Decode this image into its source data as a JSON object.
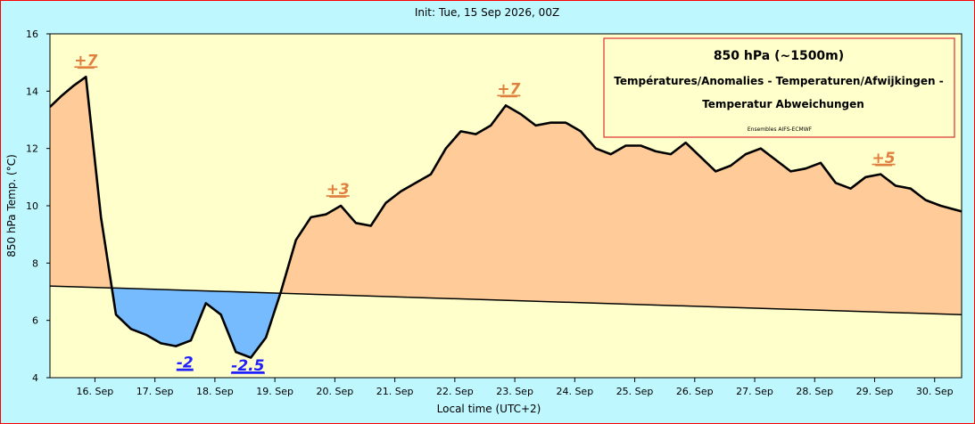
{
  "header": {
    "init_text": "Init: Tue, 15 Sep 2026, 00Z"
  },
  "legend_box": {
    "title": "850 hPa (~1500m)",
    "line1": "Températures/Anomalies - Temperaturen/Afwijkingen -",
    "line2": "Temperatur Abweichungen",
    "source": "Ensembles AIFS-ECMWF"
  },
  "colors": {
    "positive_fill": "#ffcc99",
    "negative_fill": "#77bbff",
    "plot_bg": "#ffffcc",
    "positive_label": "#e08040",
    "negative_label": "#2020ff",
    "legend_border": "#e03030"
  },
  "chart_data": {
    "type": "area",
    "ylabel": "850 hPa Temp. (°C)",
    "xlabel": "Local time (UTC+2)",
    "ylim": [
      4,
      16
    ],
    "yticks": [
      4,
      6,
      8,
      10,
      12,
      14,
      16
    ],
    "xlim": [
      15.25,
      30.45
    ],
    "x_tick_labels": [
      {
        "x": 16,
        "label": "16. Sep"
      },
      {
        "x": 17,
        "label": "17. Sep"
      },
      {
        "x": 18,
        "label": "18. Sep"
      },
      {
        "x": 19,
        "label": "19. Sep"
      },
      {
        "x": 20,
        "label": "20. Sep"
      },
      {
        "x": 21,
        "label": "21. Sep"
      },
      {
        "x": 22,
        "label": "22. Sep"
      },
      {
        "x": 23,
        "label": "23. Sep"
      },
      {
        "x": 24,
        "label": "24. Sep"
      },
      {
        "x": 25,
        "label": "25. Sep"
      },
      {
        "x": 26,
        "label": "26. Sep"
      },
      {
        "x": 27,
        "label": "27. Sep"
      },
      {
        "x": 28,
        "label": "28. Sep"
      },
      {
        "x": 29,
        "label": "29. Sep"
      },
      {
        "x": 30,
        "label": "30. Sep"
      }
    ],
    "series": [
      {
        "points": [
          [
            15.25,
            13.45
          ],
          [
            15.45,
            13.85
          ],
          [
            15.65,
            14.2
          ],
          [
            15.85,
            14.5
          ],
          [
            16.1,
            9.6
          ],
          [
            16.35,
            6.2
          ],
          [
            16.6,
            5.7
          ],
          [
            16.85,
            5.5
          ],
          [
            17.1,
            5.2
          ],
          [
            17.35,
            5.1
          ],
          [
            17.6,
            5.3
          ],
          [
            17.85,
            6.6
          ],
          [
            18.1,
            6.2
          ],
          [
            18.35,
            4.9
          ],
          [
            18.6,
            4.7
          ],
          [
            18.85,
            5.4
          ],
          [
            19.1,
            7.0
          ],
          [
            19.35,
            8.8
          ],
          [
            19.6,
            9.6
          ],
          [
            19.85,
            9.7
          ],
          [
            20.1,
            10.0
          ],
          [
            20.35,
            9.4
          ],
          [
            20.6,
            9.3
          ],
          [
            20.85,
            10.1
          ],
          [
            21.1,
            10.5
          ],
          [
            21.35,
            10.8
          ],
          [
            21.6,
            11.1
          ],
          [
            21.85,
            12.0
          ],
          [
            22.1,
            12.6
          ],
          [
            22.35,
            12.5
          ],
          [
            22.6,
            12.8
          ],
          [
            22.85,
            13.5
          ],
          [
            23.1,
            13.2
          ],
          [
            23.35,
            12.8
          ],
          [
            23.6,
            12.9
          ],
          [
            23.85,
            12.9
          ],
          [
            24.1,
            12.6
          ],
          [
            24.35,
            12.0
          ],
          [
            24.6,
            11.8
          ],
          [
            24.85,
            12.1
          ],
          [
            25.1,
            12.1
          ],
          [
            25.35,
            11.9
          ],
          [
            25.6,
            11.8
          ],
          [
            25.85,
            12.2
          ],
          [
            26.1,
            11.7
          ],
          [
            26.35,
            11.2
          ],
          [
            26.6,
            11.4
          ],
          [
            26.85,
            11.8
          ],
          [
            27.1,
            12.0
          ],
          [
            27.35,
            11.6
          ],
          [
            27.6,
            11.2
          ],
          [
            27.85,
            11.3
          ],
          [
            28.1,
            11.5
          ],
          [
            28.35,
            10.8
          ],
          [
            28.6,
            10.6
          ],
          [
            28.85,
            11.0
          ],
          [
            29.1,
            11.1
          ],
          [
            29.35,
            10.7
          ],
          [
            29.6,
            10.6
          ],
          [
            29.85,
            10.2
          ],
          [
            30.1,
            10.0
          ],
          [
            30.45,
            9.8
          ]
        ]
      }
    ],
    "reference_line": {
      "start": [
        15.25,
        7.2
      ],
      "end": [
        30.45,
        6.2
      ]
    },
    "annotations": [
      {
        "text": "+7",
        "x": 15.85,
        "y": 14.9,
        "sign": "positive"
      },
      {
        "text": "-2",
        "x": 17.5,
        "y": 4.35,
        "sign": "negative"
      },
      {
        "text": "-2.5",
        "x": 18.55,
        "y": 4.25,
        "sign": "negative"
      },
      {
        "text": "+3",
        "x": 20.05,
        "y": 10.4,
        "sign": "positive"
      },
      {
        "text": "+7",
        "x": 22.9,
        "y": 13.9,
        "sign": "positive"
      },
      {
        "text": "+5",
        "x": 29.15,
        "y": 11.5,
        "sign": "positive"
      }
    ]
  }
}
